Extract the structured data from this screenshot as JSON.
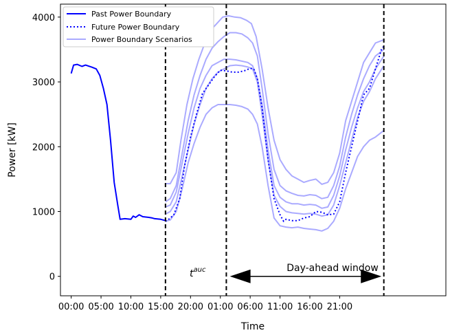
{
  "chart_data": {
    "type": "line",
    "xlabel": "Time",
    "ylabel": "Power [kW]",
    "xlim": [
      -0.9,
      31.4
    ],
    "ylim": [
      -300,
      4200
    ],
    "grid": false,
    "legend_placement": "top-left",
    "x_ticks": [
      {
        "x": 0,
        "label": "00:00"
      },
      {
        "x": 2.5,
        "label": "05:00"
      },
      {
        "x": 5,
        "label": "10:00"
      },
      {
        "x": 7.5,
        "label": "15:00"
      },
      {
        "x": 10,
        "label": "20:00"
      },
      {
        "x": 12.5,
        "label": "01:00"
      },
      {
        "x": 15,
        "label": "06:00"
      },
      {
        "x": 17.5,
        "label": "11:00"
      },
      {
        "x": 20,
        "label": "16:00"
      },
      {
        "x": 22.5,
        "label": "21:00"
      }
    ],
    "y_ticks": [
      0,
      1000,
      2000,
      3000,
      4000
    ],
    "legend": [
      {
        "label": "Past Power Boundary",
        "style": "solid",
        "color": "#0000ff"
      },
      {
        "label": "Future Power Boundary",
        "style": "dotted",
        "color": "#0000ff"
      },
      {
        "label": "Power Boundary Scenarios",
        "style": "solid",
        "color": "#aaaaff"
      }
    ],
    "vlines": [
      7.9,
      13.0,
      26.2
    ],
    "annotations": {
      "t_auc_base": "t",
      "t_auc_sup": "auc",
      "window_label": "Day-ahead window"
    },
    "past_series": {
      "name": "Past Power Boundary",
      "color": "#0000ff",
      "points": [
        [
          0,
          3130
        ],
        [
          0.2,
          3260
        ],
        [
          0.5,
          3270
        ],
        [
          0.9,
          3240
        ],
        [
          1.2,
          3260
        ],
        [
          1.7,
          3230
        ],
        [
          2.1,
          3200
        ],
        [
          2.4,
          3100
        ],
        [
          2.7,
          2900
        ],
        [
          3.0,
          2650
        ],
        [
          3.3,
          2100
        ],
        [
          3.6,
          1450
        ],
        [
          3.9,
          1100
        ],
        [
          4.1,
          880
        ],
        [
          4.5,
          890
        ],
        [
          5.0,
          880
        ],
        [
          5.2,
          930
        ],
        [
          5.4,
          910
        ],
        [
          5.7,
          950
        ],
        [
          6.0,
          920
        ],
        [
          6.5,
          910
        ],
        [
          6.8,
          900
        ],
        [
          7.0,
          890
        ],
        [
          7.5,
          880
        ],
        [
          7.9,
          860
        ]
      ]
    },
    "future_series": {
      "name": "Future Power Boundary",
      "color": "#0000ff",
      "points": [
        [
          7.9,
          850
        ],
        [
          8.1,
          870
        ],
        [
          8.3,
          900
        ],
        [
          8.6,
          950
        ],
        [
          9.1,
          1200
        ],
        [
          9.5,
          1700
        ],
        [
          10,
          2150
        ],
        [
          10.5,
          2500
        ],
        [
          11,
          2820
        ],
        [
          11.5,
          2950
        ],
        [
          12,
          3080
        ],
        [
          12.5,
          3180
        ],
        [
          13,
          3170
        ],
        [
          13.5,
          3150
        ],
        [
          14,
          3150
        ],
        [
          14.5,
          3170
        ],
        [
          15,
          3210
        ],
        [
          15.3,
          3200
        ],
        [
          15.6,
          3050
        ],
        [
          16,
          2600
        ],
        [
          16.5,
          1800
        ],
        [
          17,
          1200
        ],
        [
          17.5,
          950
        ],
        [
          17.8,
          850
        ],
        [
          18,
          880
        ],
        [
          18.5,
          860
        ],
        [
          19,
          860
        ],
        [
          19.5,
          900
        ],
        [
          20,
          920
        ],
        [
          20.5,
          1000
        ],
        [
          21,
          990
        ],
        [
          21.5,
          950
        ],
        [
          22,
          960
        ],
        [
          22.5,
          1150
        ],
        [
          23,
          1600
        ],
        [
          23.5,
          2000
        ],
        [
          24,
          2400
        ],
        [
          24.5,
          2800
        ],
        [
          25,
          2900
        ],
        [
          25.5,
          3200
        ],
        [
          26,
          3500
        ],
        [
          26.2,
          3550
        ]
      ]
    },
    "scenarios": [
      {
        "points": [
          [
            7.9,
            1430
          ],
          [
            8.3,
            1430
          ],
          [
            8.8,
            1600
          ],
          [
            9.2,
            2100
          ],
          [
            9.7,
            2650
          ],
          [
            10.2,
            3050
          ],
          [
            10.7,
            3350
          ],
          [
            11.2,
            3600
          ],
          [
            11.7,
            3800
          ],
          [
            12.2,
            3900
          ],
          [
            12.7,
            4000
          ],
          [
            13.2,
            4020
          ],
          [
            13.7,
            4000
          ],
          [
            14.2,
            3990
          ],
          [
            14.7,
            3950
          ],
          [
            15.1,
            3900
          ],
          [
            15.5,
            3700
          ],
          [
            16,
            3200
          ],
          [
            16.5,
            2600
          ],
          [
            17,
            2100
          ],
          [
            17.5,
            1800
          ],
          [
            18,
            1650
          ],
          [
            18.5,
            1550
          ],
          [
            19,
            1500
          ],
          [
            19.5,
            1450
          ],
          [
            20,
            1480
          ],
          [
            20.5,
            1500
          ],
          [
            21,
            1420
          ],
          [
            21.5,
            1450
          ],
          [
            22,
            1600
          ],
          [
            22.5,
            1900
          ],
          [
            23,
            2400
          ],
          [
            23.5,
            2700
          ],
          [
            24,
            3000
          ],
          [
            24.5,
            3300
          ],
          [
            25,
            3450
          ],
          [
            25.5,
            3600
          ],
          [
            26.2,
            3650
          ]
        ]
      },
      {
        "points": [
          [
            7.9,
            1150
          ],
          [
            8.3,
            1200
          ],
          [
            8.8,
            1400
          ],
          [
            9.3,
            1900
          ],
          [
            9.8,
            2400
          ],
          [
            10.3,
            2800
          ],
          [
            10.8,
            3100
          ],
          [
            11.3,
            3350
          ],
          [
            11.8,
            3520
          ],
          [
            12.3,
            3620
          ],
          [
            12.8,
            3700
          ],
          [
            13.3,
            3760
          ],
          [
            13.8,
            3760
          ],
          [
            14.3,
            3740
          ],
          [
            14.8,
            3680
          ],
          [
            15.2,
            3600
          ],
          [
            15.6,
            3400
          ],
          [
            16,
            2900
          ],
          [
            16.5,
            2200
          ],
          [
            17,
            1650
          ],
          [
            17.5,
            1400
          ],
          [
            18,
            1320
          ],
          [
            18.5,
            1280
          ],
          [
            19,
            1250
          ],
          [
            19.5,
            1240
          ],
          [
            20,
            1260
          ],
          [
            20.5,
            1250
          ],
          [
            21,
            1200
          ],
          [
            21.5,
            1220
          ],
          [
            22,
            1400
          ],
          [
            22.5,
            1700
          ],
          [
            23,
            2150
          ],
          [
            23.5,
            2500
          ],
          [
            24,
            2800
          ],
          [
            24.5,
            3050
          ],
          [
            25,
            3250
          ],
          [
            25.5,
            3400
          ],
          [
            26.2,
            3500
          ]
        ]
      },
      {
        "points": [
          [
            7.9,
            1070
          ],
          [
            8.3,
            1100
          ],
          [
            8.8,
            1300
          ],
          [
            9.3,
            1750
          ],
          [
            9.8,
            2200
          ],
          [
            10.3,
            2600
          ],
          [
            10.8,
            2900
          ],
          [
            11.3,
            3100
          ],
          [
            11.8,
            3250
          ],
          [
            12.3,
            3300
          ],
          [
            12.8,
            3350
          ],
          [
            13.3,
            3350
          ],
          [
            13.8,
            3340
          ],
          [
            14.3,
            3320
          ],
          [
            14.8,
            3300
          ],
          [
            15.2,
            3250
          ],
          [
            15.6,
            3050
          ],
          [
            16,
            2650
          ],
          [
            16.5,
            1950
          ],
          [
            17,
            1400
          ],
          [
            17.5,
            1220
          ],
          [
            18,
            1150
          ],
          [
            18.5,
            1120
          ],
          [
            19,
            1120
          ],
          [
            19.5,
            1100
          ],
          [
            20,
            1110
          ],
          [
            20.5,
            1100
          ],
          [
            21,
            1050
          ],
          [
            21.5,
            1070
          ],
          [
            22,
            1250
          ],
          [
            22.5,
            1550
          ],
          [
            23,
            1950
          ],
          [
            23.5,
            2300
          ],
          [
            24,
            2600
          ],
          [
            24.5,
            2850
          ],
          [
            25,
            3000
          ],
          [
            25.5,
            3200
          ],
          [
            26.2,
            3400
          ]
        ]
      },
      {
        "points": [
          [
            7.9,
            960
          ],
          [
            8.3,
            1000
          ],
          [
            8.8,
            1150
          ],
          [
            9.3,
            1550
          ],
          [
            9.8,
            1950
          ],
          [
            10.3,
            2350
          ],
          [
            10.8,
            2650
          ],
          [
            11.3,
            2900
          ],
          [
            11.8,
            3050
          ],
          [
            12.3,
            3150
          ],
          [
            12.8,
            3200
          ],
          [
            13.3,
            3250
          ],
          [
            13.8,
            3260
          ],
          [
            14.3,
            3250
          ],
          [
            14.8,
            3230
          ],
          [
            15.2,
            3200
          ],
          [
            15.6,
            3000
          ],
          [
            16,
            2500
          ],
          [
            16.5,
            1800
          ],
          [
            17,
            1250
          ],
          [
            17.5,
            1080
          ],
          [
            18,
            1000
          ],
          [
            18.5,
            980
          ],
          [
            19,
            970
          ],
          [
            19.5,
            960
          ],
          [
            20,
            970
          ],
          [
            20.5,
            960
          ],
          [
            21,
            930
          ],
          [
            21.5,
            950
          ],
          [
            22,
            1100
          ],
          [
            22.5,
            1400
          ],
          [
            23,
            1750
          ],
          [
            23.5,
            2100
          ],
          [
            24,
            2450
          ],
          [
            24.5,
            2700
          ],
          [
            25,
            2850
          ],
          [
            25.5,
            3050
          ],
          [
            26.2,
            3250
          ]
        ]
      },
      {
        "points": [
          [
            7.9,
            850
          ],
          [
            8.3,
            870
          ],
          [
            8.8,
            1000
          ],
          [
            9.3,
            1350
          ],
          [
            9.8,
            1750
          ],
          [
            10.3,
            2050
          ],
          [
            10.8,
            2300
          ],
          [
            11.3,
            2500
          ],
          [
            11.8,
            2600
          ],
          [
            12.3,
            2650
          ],
          [
            12.8,
            2650
          ],
          [
            13.3,
            2650
          ],
          [
            13.8,
            2640
          ],
          [
            14.3,
            2620
          ],
          [
            14.8,
            2580
          ],
          [
            15.2,
            2500
          ],
          [
            15.6,
            2350
          ],
          [
            16,
            2000
          ],
          [
            16.5,
            1400
          ],
          [
            17,
            900
          ],
          [
            17.5,
            780
          ],
          [
            18,
            760
          ],
          [
            18.5,
            750
          ],
          [
            19,
            760
          ],
          [
            19.5,
            740
          ],
          [
            20,
            730
          ],
          [
            20.5,
            720
          ],
          [
            21,
            700
          ],
          [
            21.5,
            740
          ],
          [
            22,
            850
          ],
          [
            22.5,
            1050
          ],
          [
            23,
            1350
          ],
          [
            23.5,
            1600
          ],
          [
            24,
            1850
          ],
          [
            24.5,
            2000
          ],
          [
            25,
            2100
          ],
          [
            25.5,
            2150
          ],
          [
            26.2,
            2250
          ]
        ]
      }
    ],
    "window_arrow": {
      "from": 13.3,
      "to": 26.0,
      "y": 0
    }
  }
}
